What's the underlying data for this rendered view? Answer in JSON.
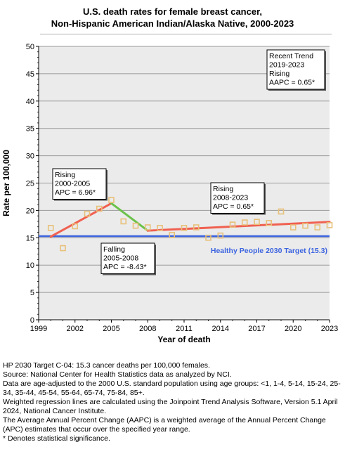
{
  "header": {
    "title_line1": "U.S. death rates for female breast cancer,",
    "title_line2": "Non-Hispanic American Indian/Alaska Native,  2000-2023"
  },
  "chart_data": {
    "type": "line",
    "xlabel": "Year of death",
    "ylabel": "Rate per 100,000",
    "xlim": [
      1999,
      2023
    ],
    "ylim": [
      0,
      50
    ],
    "x_ticks": [
      1999,
      2002,
      2005,
      2008,
      2011,
      2014,
      2017,
      2020,
      2023
    ],
    "y_ticks": [
      0,
      5,
      10,
      15,
      20,
      25,
      30,
      35,
      40,
      45,
      50
    ],
    "grid": true,
    "observed": {
      "x": [
        2000,
        2001,
        2002,
        2003,
        2004,
        2005,
        2006,
        2007,
        2008,
        2009,
        2010,
        2011,
        2012,
        2013,
        2014,
        2015,
        2016,
        2017,
        2018,
        2019,
        2020,
        2021,
        2022,
        2023
      ],
      "y": [
        16.8,
        13.1,
        17.1,
        19.4,
        20.3,
        21.9,
        18.0,
        17.2,
        16.9,
        16.8,
        15.5,
        16.8,
        16.9,
        15.0,
        15.4,
        17.4,
        17.8,
        17.9,
        17.7,
        19.8,
        16.9,
        17.2,
        16.9,
        17.3
      ]
    },
    "trend_segments": [
      {
        "x": [
          2000,
          2005
        ],
        "y": [
          15.2,
          21.3
        ],
        "color": "#f06050"
      },
      {
        "x": [
          2005,
          2008
        ],
        "y": [
          21.3,
          16.3
        ],
        "color": "#6cc24a"
      },
      {
        "x": [
          2008,
          2023
        ],
        "y": [
          16.3,
          17.9
        ],
        "color": "#f06050"
      }
    ],
    "target": {
      "value": 15.3,
      "label": "Healthy People 2030 Target (15.3)",
      "color": "#3c64e0"
    },
    "marker_color": "#e8c07a",
    "annotations": [
      {
        "id": "recent",
        "lines": [
          "Recent Trend",
          "2019-2023",
          "Rising",
          "AAPC =  0.65*"
        ]
      },
      {
        "id": "rising1",
        "lines": [
          "Rising",
          "2000-2005",
          "APC =  6.96*"
        ]
      },
      {
        "id": "falling",
        "lines": [
          "Falling",
          "2005-2008",
          "APC = -8.43*"
        ]
      },
      {
        "id": "rising2",
        "lines": [
          "Rising",
          "2008-2023",
          "APC =  0.65*"
        ]
      }
    ]
  },
  "footnotes": [
    "HP 2030 Target C-04: 15.3 cancer deaths per 100,000 females.",
    "Source: National Center for Health Statistics data as analyzed by NCI.",
    "Data are age-adjusted to the 2000 U.S. standard population using age groups: <1, 1-4, 5-14, 15-24, 25-34, 35-44, 45-54, 55-64, 65-74, 75-84, 85+.",
    "Weighted regression lines are calculated using the Joinpoint Trend Analysis Software, Version 5.1 April 2024, National Cancer Institute.",
    "The Average Annual Percent Change (AAPC) is a weighted average of the Annual Percent Change (APC) estimates that occur over the specified year range.",
    "* Denotes statistical significance."
  ]
}
